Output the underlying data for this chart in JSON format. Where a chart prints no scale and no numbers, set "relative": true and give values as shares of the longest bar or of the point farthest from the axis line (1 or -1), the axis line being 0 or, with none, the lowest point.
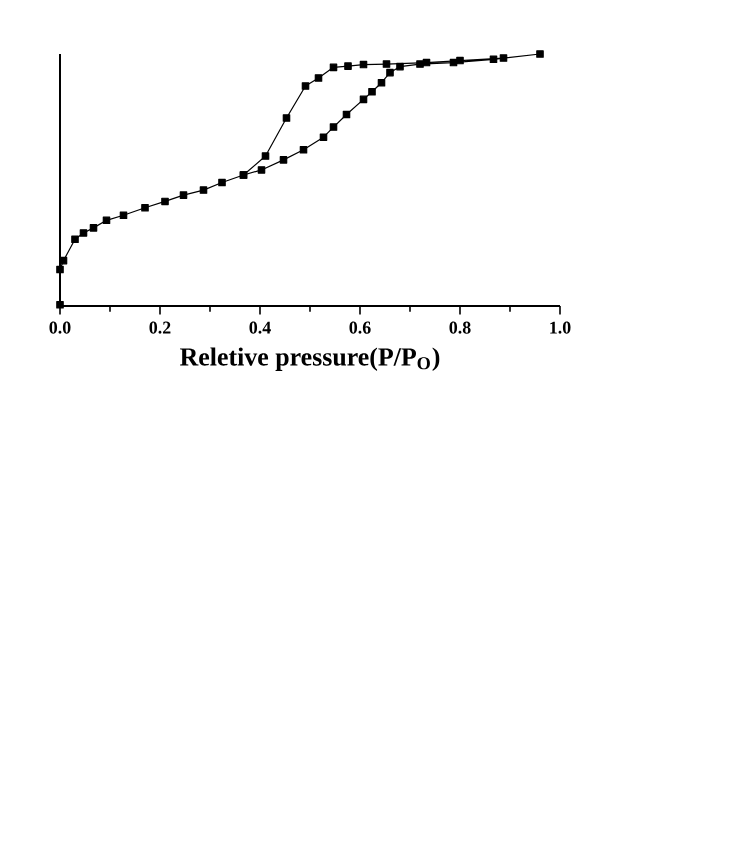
{
  "chart_data": {
    "type": "line",
    "relative": true,
    "xlabel": "Reletive pressure(P/P$_{O}$)",
    "xlim": [
      0,
      1
    ],
    "xticks": [
      {
        "value": 0,
        "label": "0.0"
      },
      {
        "value": 0.2,
        "label": "0.2"
      },
      {
        "value": 0.4,
        "label": "0.4"
      },
      {
        "value": 0.6,
        "label": "0.6"
      },
      {
        "value": 0.8,
        "label": "0.8"
      },
      {
        "value": 1.0,
        "label": "1.0"
      }
    ],
    "tick_labels": "x",
    "marker": "square",
    "line_style": "solid",
    "series": [
      {
        "color": "#000000",
        "x": [
          0.0,
          0.0,
          0.007,
          0.03,
          0.047,
          0.067,
          0.093,
          0.127,
          0.17,
          0.21,
          0.247,
          0.287,
          0.324,
          0.367,
          0.403,
          0.447,
          0.487,
          0.527,
          0.547,
          0.573,
          0.607,
          0.624,
          0.643,
          0.66,
          0.68,
          0.72,
          0.787,
          0.867,
          0.96,
          0.887,
          0.8,
          0.733,
          0.653,
          0.607,
          0.576,
          0.547,
          0.517,
          0.491,
          0.453,
          0.411,
          0.367
        ],
        "values": [
          0.005,
          0.145,
          0.18,
          0.265,
          0.29,
          0.31,
          0.34,
          0.36,
          0.39,
          0.415,
          0.44,
          0.46,
          0.49,
          0.52,
          0.54,
          0.58,
          0.62,
          0.67,
          0.71,
          0.76,
          0.82,
          0.85,
          0.886,
          0.926,
          0.95,
          0.96,
          0.966,
          0.979,
          1.0,
          0.984,
          0.974,
          0.966,
          0.96,
          0.958,
          0.952,
          0.947,
          0.905,
          0.873,
          0.746,
          0.595,
          0.52
        ]
      }
    ]
  }
}
